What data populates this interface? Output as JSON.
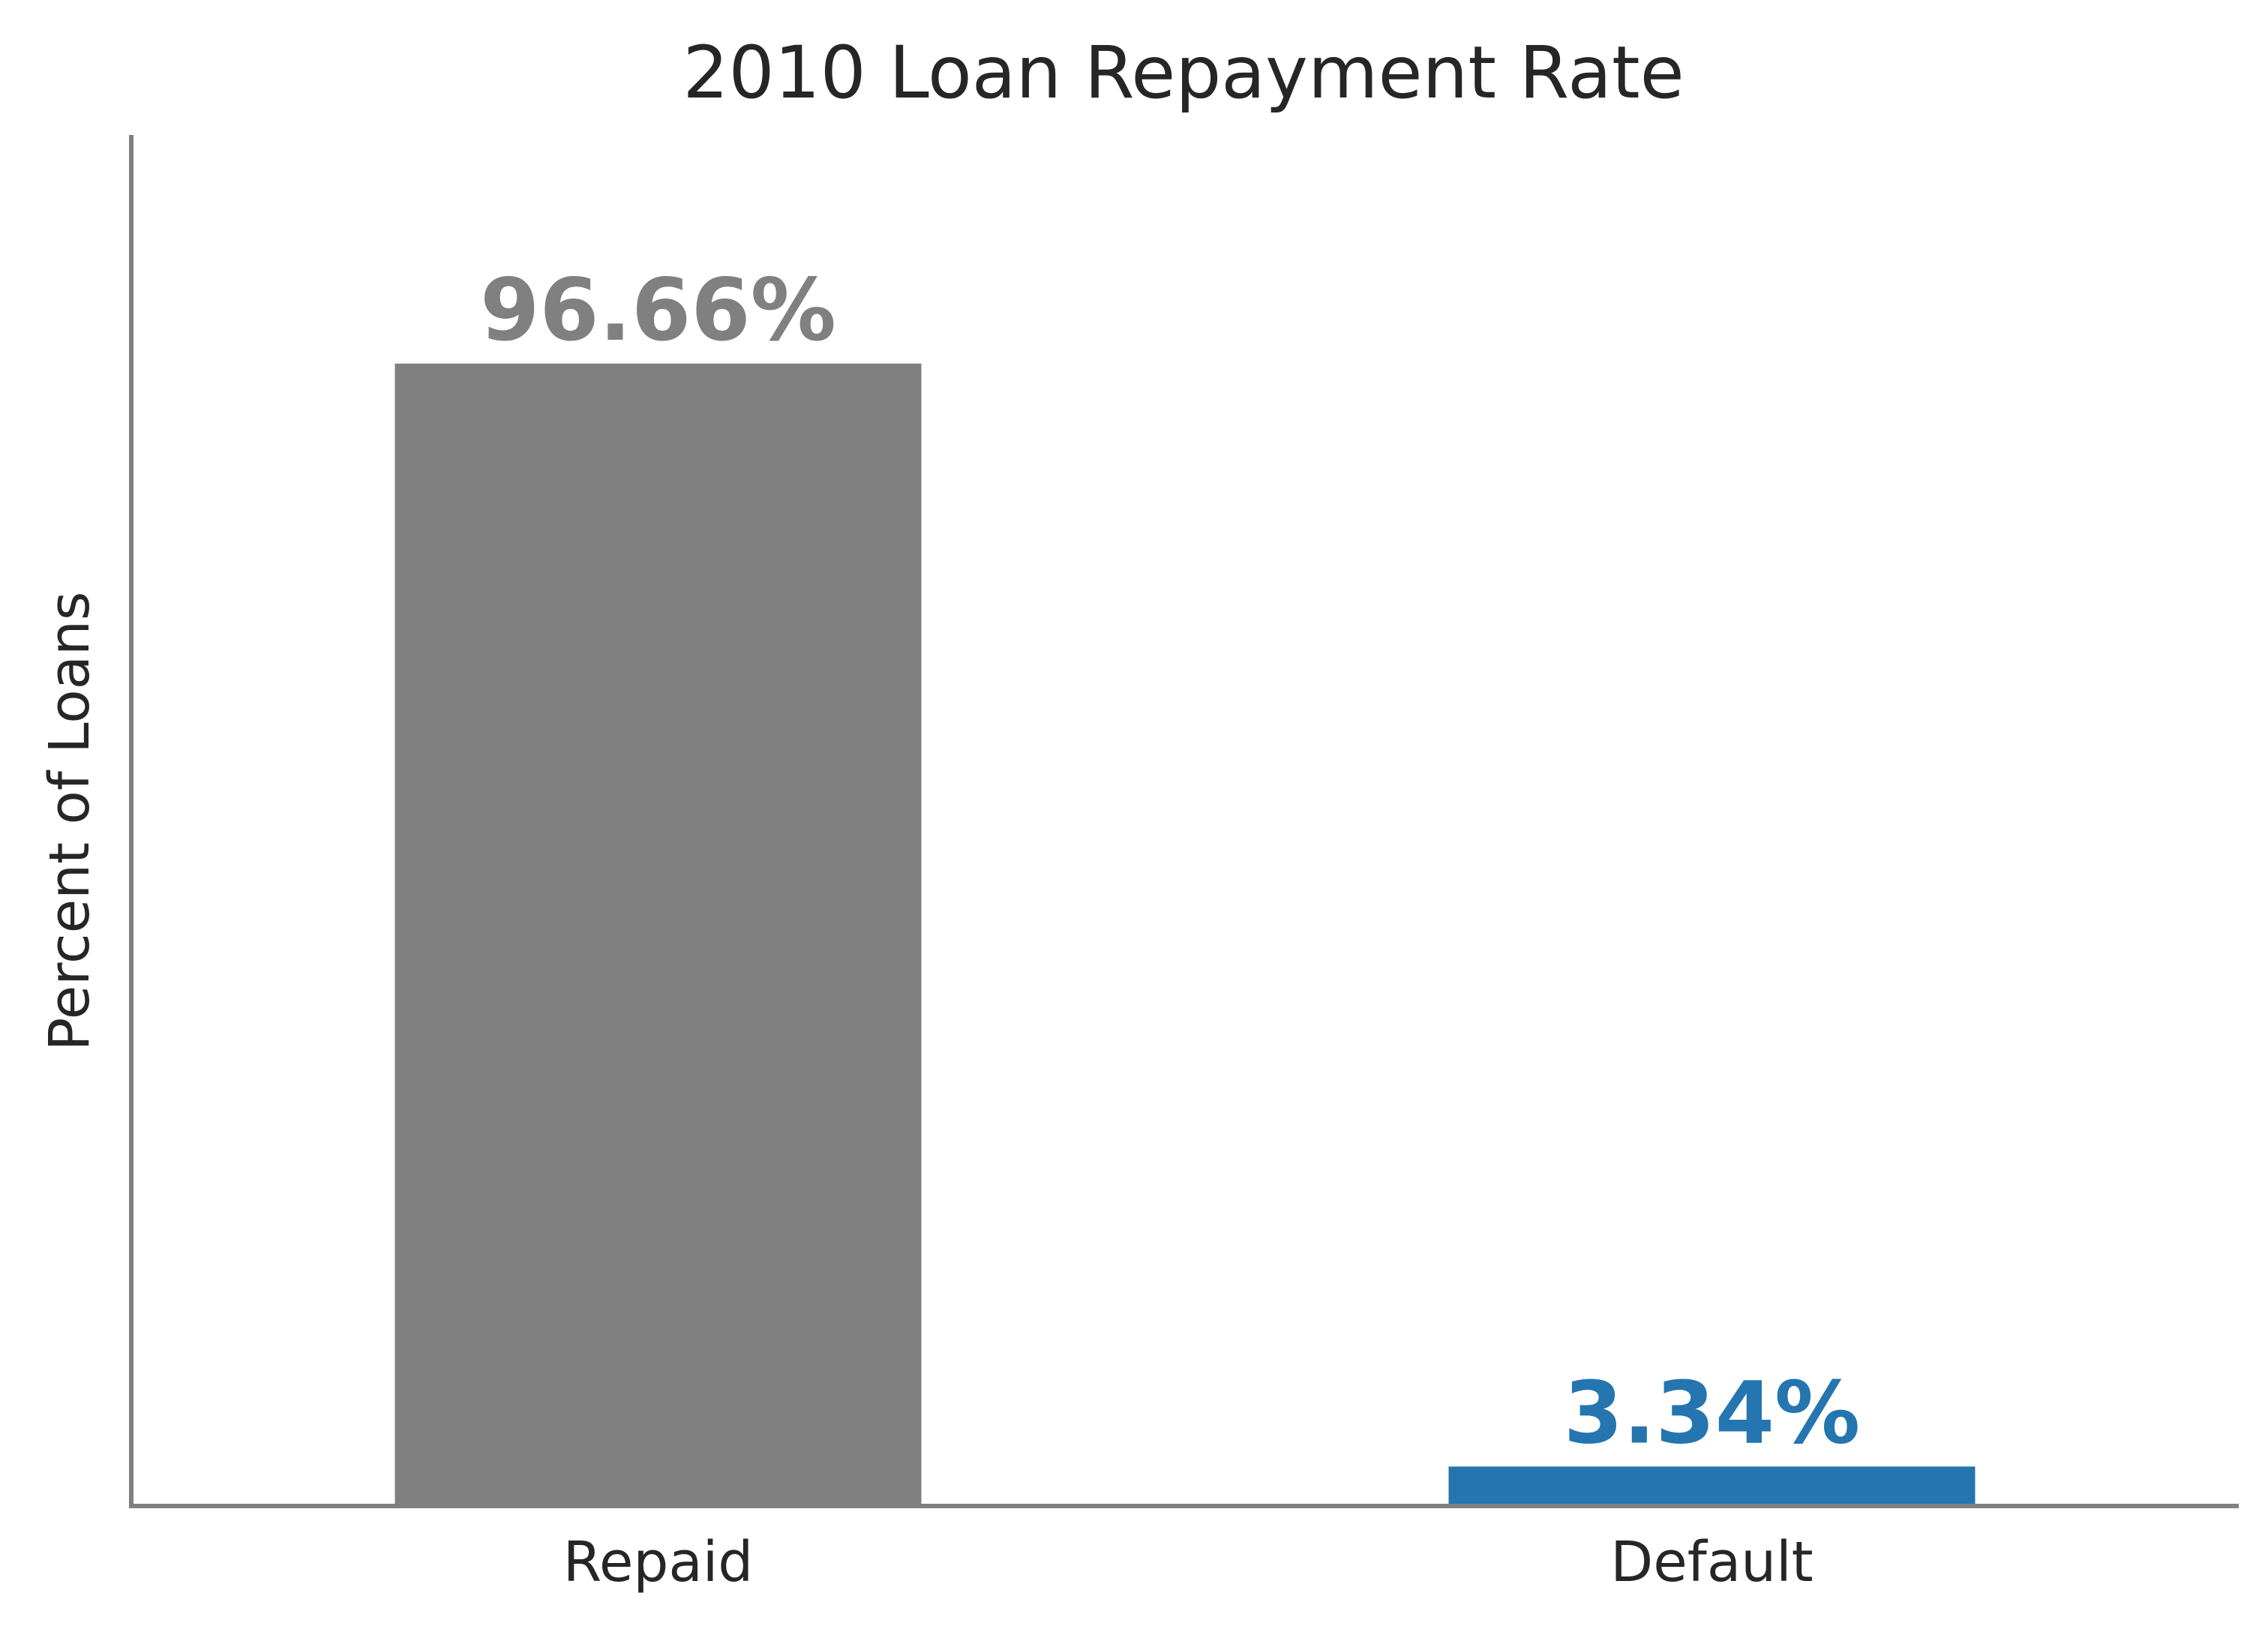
{
  "chart_data": {
    "type": "bar",
    "title": "2010 Loan Repayment Rate",
    "xlabel": "",
    "ylabel": "Percent of Loans",
    "categories": [
      "Repaid",
      "Default"
    ],
    "values": [
      96.66,
      3.34
    ],
    "data_labels": [
      "96.66%",
      "3.34%"
    ],
    "colors": [
      "#808080",
      "#2475b0"
    ],
    "axis_color": "#808080",
    "ylim": [
      0,
      116
    ],
    "grid": false,
    "y_ticks_shown": false
  }
}
